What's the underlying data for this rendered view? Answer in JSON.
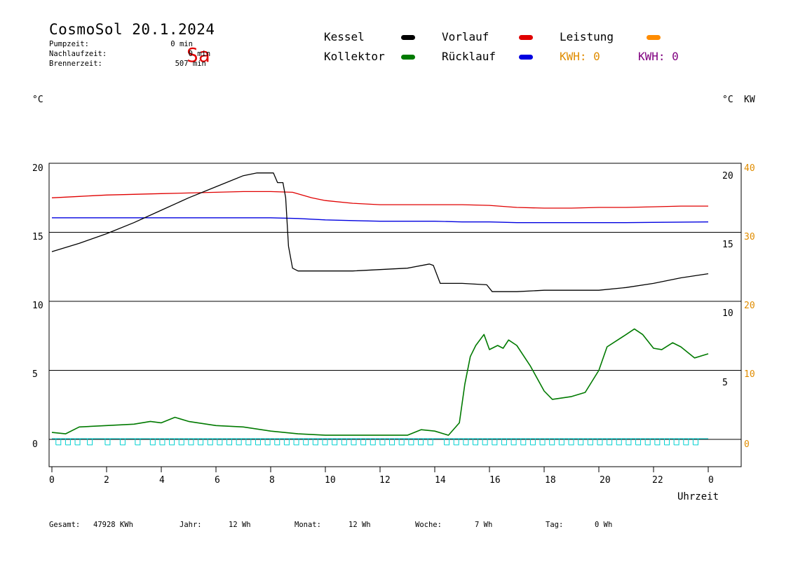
{
  "header": {
    "title": "CosmoSol 20.1.2024",
    "day": "Sa",
    "stats": [
      {
        "label": "Pumpzeit:",
        "value": "0 min"
      },
      {
        "label": "Nachlaufzeit:",
        "value": "0 min"
      },
      {
        "label": "Brennerzeit:",
        "value": "507 min"
      }
    ]
  },
  "legend": [
    {
      "label": "Kessel",
      "color": "#000000"
    },
    {
      "label": "Kollektor",
      "color": "#007a00"
    },
    {
      "label": "Vorlauf",
      "color": "#e00000"
    },
    {
      "label": "Rücklauf",
      "color": "#0000e0"
    },
    {
      "label": "Leistung",
      "color": "#ff8c00"
    }
  ],
  "kwh": [
    {
      "text": "KWH: 0",
      "color": "#e08c00"
    },
    {
      "text": "KWH: 0",
      "color": "#800080"
    }
  ],
  "units": {
    "left": "°C",
    "right": "°C",
    "right_kw": "KW"
  },
  "x_axis_label": "Uhrzeit",
  "footer": {
    "gesamt": {
      "label": "Gesamt:",
      "value": "47928 KWh"
    },
    "jahr": {
      "label": "Jahr:",
      "value": "12 Wh"
    },
    "monat": {
      "label": "Monat:",
      "value": "12 Wh"
    },
    "woche": {
      "label": "Woche:",
      "value": "7 Wh"
    },
    "tag": {
      "label": "Tag:",
      "value": "0 Wh"
    }
  },
  "colors": {
    "kessel": "#000000",
    "kollektor": "#007a00",
    "vorlauf": "#e00000",
    "ruecklauf": "#0000e0",
    "pump": "#00d0d0",
    "kw_axis": "#e08c00"
  },
  "chart_data": {
    "type": "line",
    "xlabel": "Uhrzeit",
    "xlim": [
      0,
      24
    ],
    "ylim": [
      -2,
      20
    ],
    "x_ticks": [
      "0",
      "2",
      "4",
      "6",
      "8",
      "10",
      "12",
      "14",
      "16",
      "18",
      "20",
      "22",
      "0"
    ],
    "y_ticks_left": [
      "20",
      "15",
      "10",
      "5",
      "0"
    ],
    "y_ticks_right": [
      "20",
      "15",
      "10",
      "5"
    ],
    "y_ticks_right_kw": [
      "40",
      "30",
      "20",
      "10",
      "0"
    ],
    "grid": "horizontal lines at 0, 5, 10, 15, 20",
    "series": [
      {
        "name": "Kessel",
        "color": "#000000",
        "points": [
          [
            0,
            13.6
          ],
          [
            1,
            14.2
          ],
          [
            2,
            14.9
          ],
          [
            3,
            15.7
          ],
          [
            4,
            16.6
          ],
          [
            5,
            17.5
          ],
          [
            6,
            18.3
          ],
          [
            7,
            19.1
          ],
          [
            7.5,
            19.3
          ],
          [
            8.1,
            19.3
          ],
          [
            8.25,
            18.6
          ],
          [
            8.45,
            18.6
          ],
          [
            8.55,
            17.5
          ],
          [
            8.65,
            14.0
          ],
          [
            8.8,
            12.4
          ],
          [
            9,
            12.2
          ],
          [
            10,
            12.2
          ],
          [
            11,
            12.2
          ],
          [
            12,
            12.3
          ],
          [
            13,
            12.4
          ],
          [
            13.8,
            12.7
          ],
          [
            13.95,
            12.6
          ],
          [
            14.2,
            11.3
          ],
          [
            15,
            11.3
          ],
          [
            15.9,
            11.2
          ],
          [
            16.1,
            10.7
          ],
          [
            17,
            10.7
          ],
          [
            18,
            10.8
          ],
          [
            19,
            10.8
          ],
          [
            20,
            10.8
          ],
          [
            21,
            11.0
          ],
          [
            22,
            11.3
          ],
          [
            23,
            11.7
          ],
          [
            24,
            12.0
          ]
        ]
      },
      {
        "name": "Kollektor",
        "color": "#007a00",
        "points": [
          [
            0,
            0.5
          ],
          [
            0.5,
            0.4
          ],
          [
            1,
            0.9
          ],
          [
            2,
            1.0
          ],
          [
            3,
            1.1
          ],
          [
            3.6,
            1.3
          ],
          [
            4,
            1.2
          ],
          [
            4.5,
            1.6
          ],
          [
            5,
            1.3
          ],
          [
            6,
            1.0
          ],
          [
            7,
            0.9
          ],
          [
            8,
            0.6
          ],
          [
            9,
            0.4
          ],
          [
            10,
            0.3
          ],
          [
            11,
            0.3
          ],
          [
            12,
            0.3
          ],
          [
            13,
            0.3
          ],
          [
            13.5,
            0.7
          ],
          [
            14,
            0.6
          ],
          [
            14.5,
            0.3
          ],
          [
            14.9,
            1.2
          ],
          [
            15.1,
            4.0
          ],
          [
            15.3,
            6.0
          ],
          [
            15.5,
            6.8
          ],
          [
            15.8,
            7.6
          ],
          [
            16,
            6.5
          ],
          [
            16.3,
            6.8
          ],
          [
            16.5,
            6.6
          ],
          [
            16.7,
            7.2
          ],
          [
            17,
            6.8
          ],
          [
            17.5,
            5.3
          ],
          [
            18,
            3.5
          ],
          [
            18.3,
            2.9
          ],
          [
            19,
            3.1
          ],
          [
            19.5,
            3.4
          ],
          [
            20,
            5.0
          ],
          [
            20.3,
            6.7
          ],
          [
            21,
            7.6
          ],
          [
            21.3,
            8.0
          ],
          [
            21.6,
            7.6
          ],
          [
            22,
            6.6
          ],
          [
            22.3,
            6.5
          ],
          [
            22.7,
            7.0
          ],
          [
            23,
            6.7
          ],
          [
            23.5,
            5.9
          ],
          [
            24,
            6.2
          ]
        ]
      },
      {
        "name": "Vorlauf",
        "color": "#e00000",
        "points": [
          [
            0,
            17.5
          ],
          [
            1,
            17.6
          ],
          [
            2,
            17.7
          ],
          [
            3,
            17.75
          ],
          [
            4,
            17.8
          ],
          [
            5,
            17.85
          ],
          [
            6,
            17.9
          ],
          [
            7,
            17.95
          ],
          [
            8,
            17.95
          ],
          [
            8.8,
            17.9
          ],
          [
            9.5,
            17.5
          ],
          [
            10,
            17.3
          ],
          [
            11,
            17.1
          ],
          [
            12,
            17.0
          ],
          [
            13,
            17.0
          ],
          [
            14,
            17.0
          ],
          [
            15,
            17.0
          ],
          [
            16,
            16.95
          ],
          [
            17,
            16.8
          ],
          [
            18,
            16.75
          ],
          [
            19,
            16.75
          ],
          [
            20,
            16.8
          ],
          [
            21,
            16.8
          ],
          [
            22,
            16.85
          ],
          [
            23,
            16.9
          ],
          [
            24,
            16.9
          ]
        ]
      },
      {
        "name": "Rücklauf",
        "color": "#0000e0",
        "points": [
          [
            0,
            16.05
          ],
          [
            2,
            16.05
          ],
          [
            4,
            16.05
          ],
          [
            6,
            16.05
          ],
          [
            8,
            16.05
          ],
          [
            9,
            16.0
          ],
          [
            10,
            15.9
          ],
          [
            11,
            15.85
          ],
          [
            12,
            15.8
          ],
          [
            13,
            15.8
          ],
          [
            14,
            15.8
          ],
          [
            15,
            15.75
          ],
          [
            16,
            15.75
          ],
          [
            17,
            15.7
          ],
          [
            18,
            15.7
          ],
          [
            19,
            15.7
          ],
          [
            20,
            15.7
          ],
          [
            21,
            15.7
          ],
          [
            22,
            15.72
          ],
          [
            24,
            15.75
          ]
        ]
      }
    ],
    "pump_cycles_hours": [
      0.25,
      0.6,
      0.95,
      1.4,
      2.05,
      2.6,
      3.15,
      3.7,
      4.05,
      4.4,
      4.75,
      5.1,
      5.45,
      5.8,
      6.15,
      6.5,
      6.85,
      7.2,
      7.55,
      7.9,
      8.25,
      8.6,
      8.95,
      9.3,
      9.65,
      10.0,
      10.35,
      10.7,
      11.05,
      11.4,
      11.75,
      12.1,
      12.45,
      12.8,
      13.15,
      13.5,
      13.85,
      14.45,
      14.8,
      15.15,
      15.5,
      15.85,
      16.2,
      16.55,
      16.9,
      17.25,
      17.6,
      17.95,
      18.3,
      18.65,
      19.0,
      19.35,
      19.7,
      20.05,
      20.4,
      20.75,
      21.1,
      21.45,
      21.8,
      22.15,
      22.5,
      22.85,
      23.2,
      23.55
    ]
  }
}
